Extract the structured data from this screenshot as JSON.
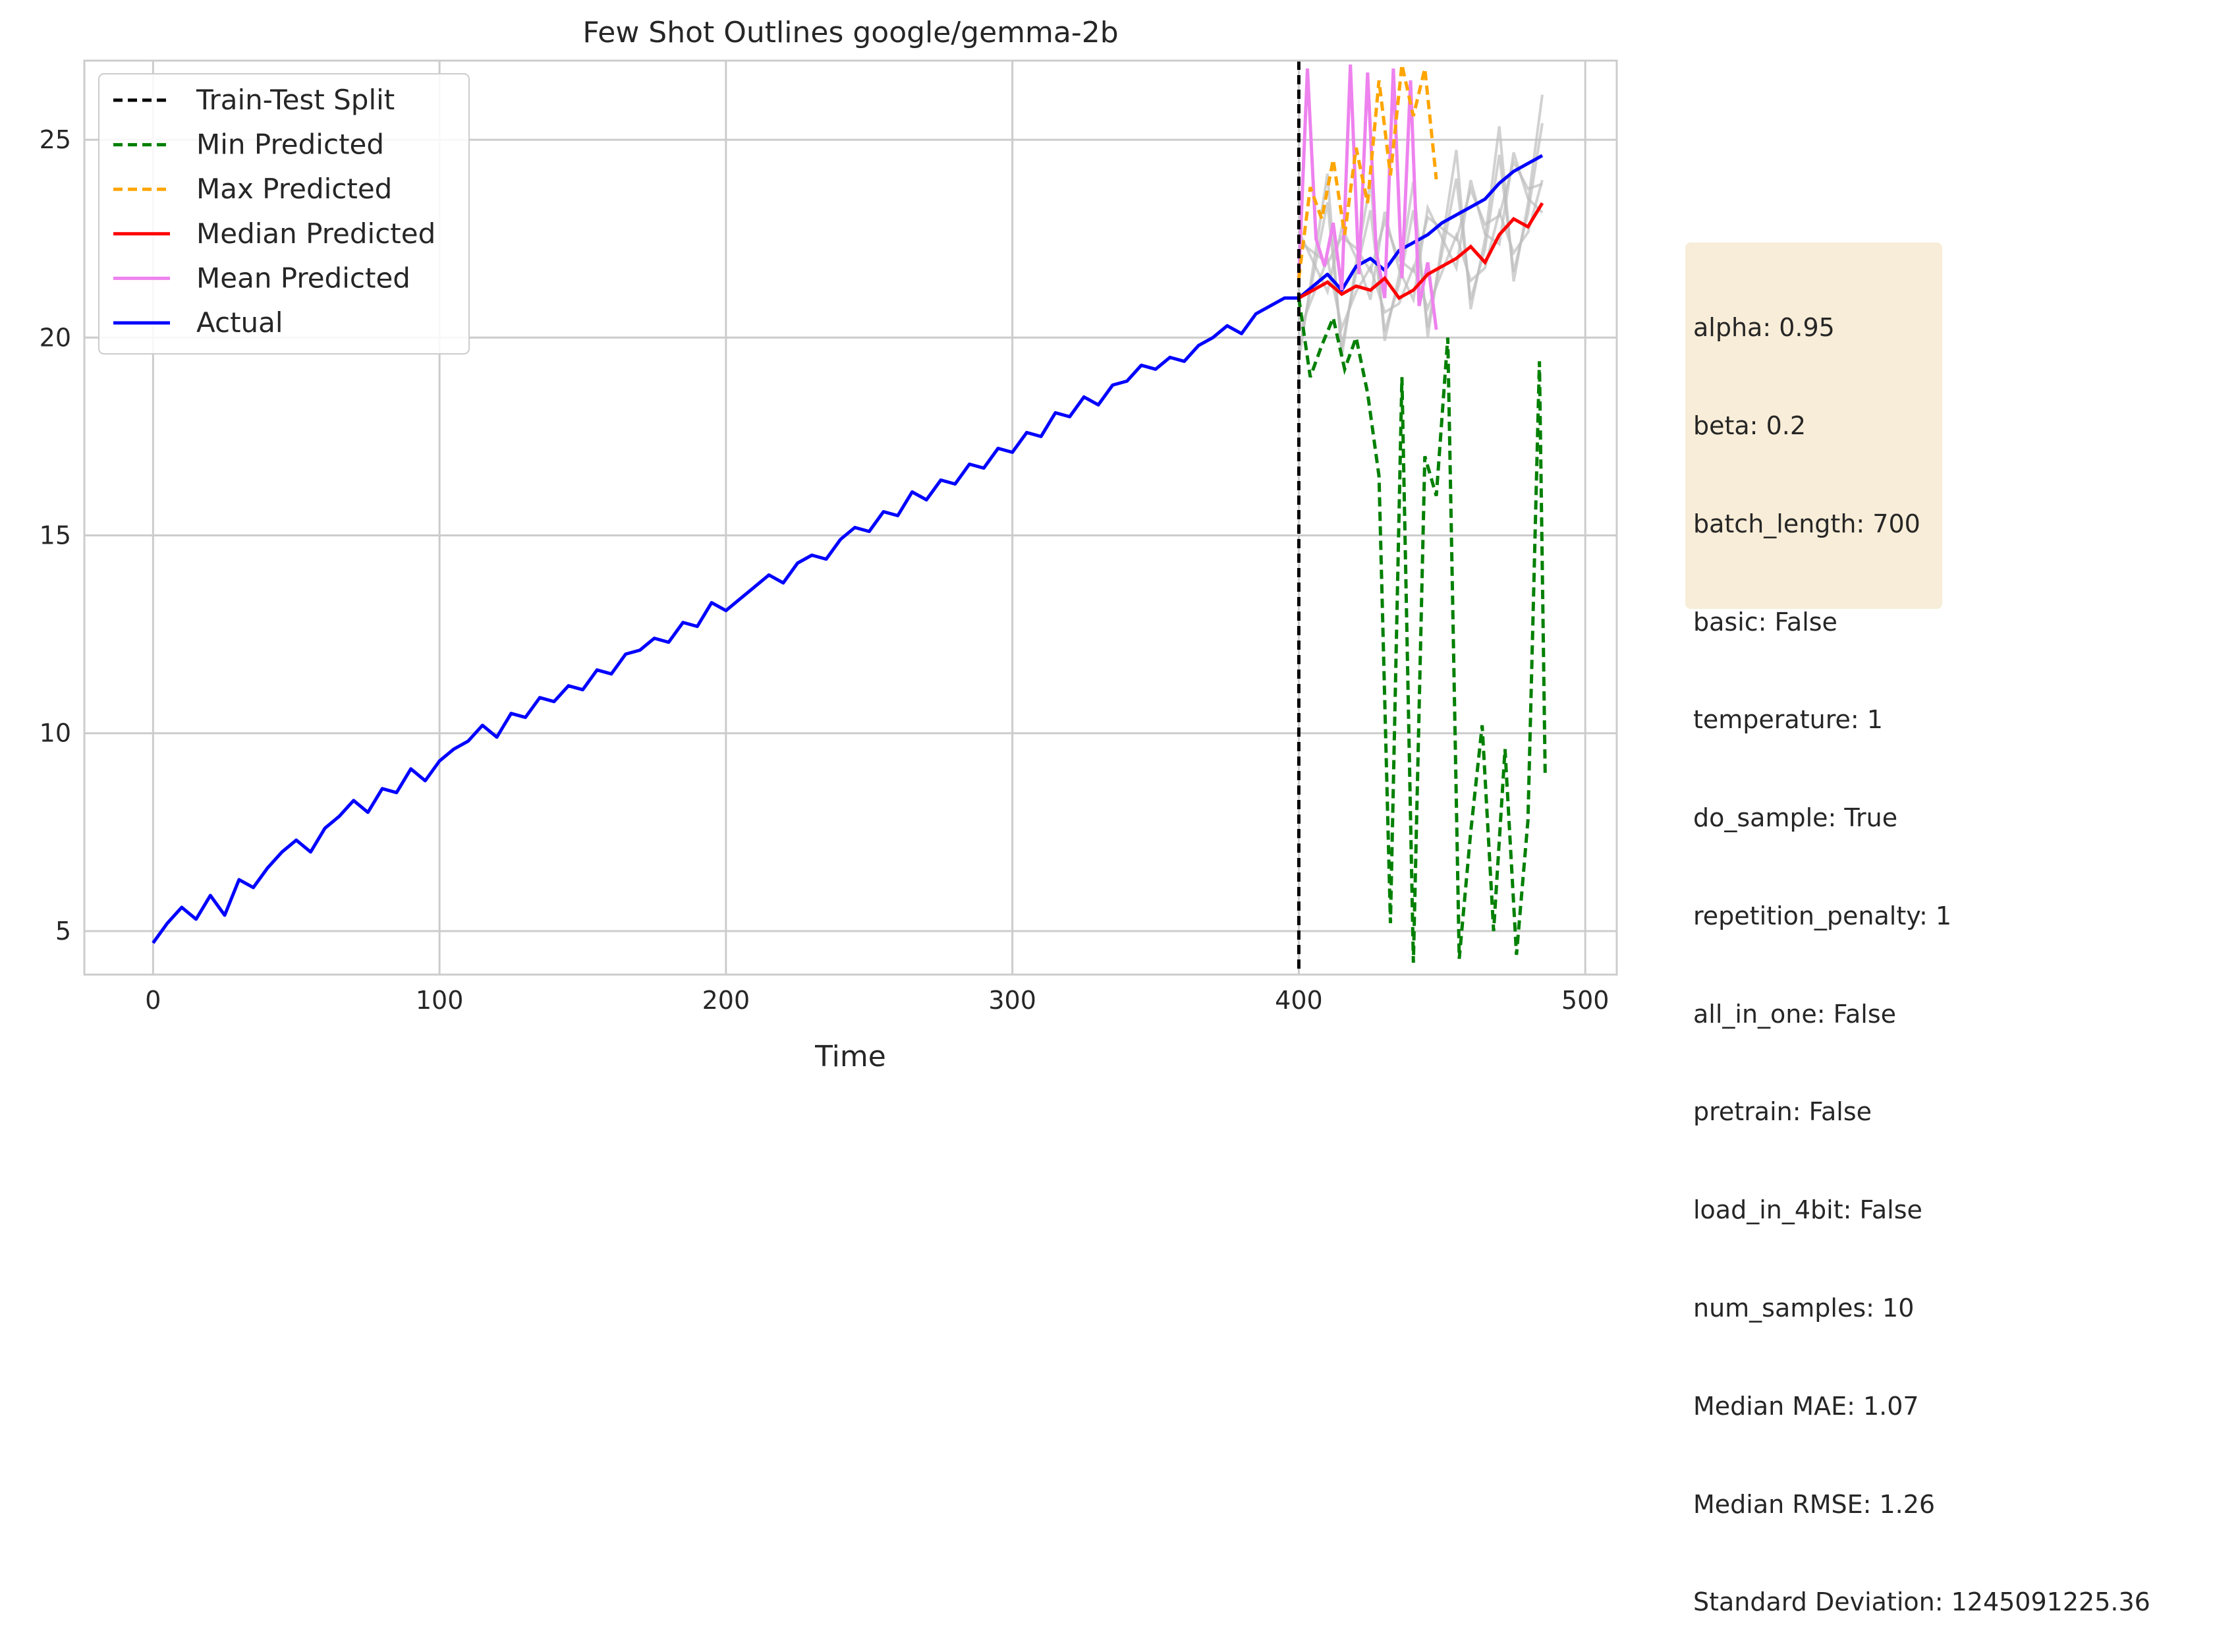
{
  "chart_data": {
    "type": "line",
    "title": "Few Shot Outlines google/gemma-2b",
    "xlabel": "Time",
    "ylabel": "",
    "xlim": [
      -24,
      511
    ],
    "ylim": [
      3.9,
      27
    ],
    "xticks": [
      0,
      100,
      200,
      300,
      400,
      500
    ],
    "yticks": [
      5,
      10,
      15,
      20,
      25
    ],
    "grid": true,
    "legend_position": "top-left",
    "split_x": 400,
    "colors": {
      "actual": "#0000ff",
      "median": "#ff0000",
      "mean": "#ee82ee",
      "min": "#008000",
      "max": "#ffa500",
      "split": "#000000",
      "samples": "#bdbdbd"
    },
    "legend": [
      {
        "label": "Train-Test Split",
        "color": "#000000",
        "dash": true
      },
      {
        "label": "Min Predicted",
        "color": "#008000",
        "dash": true
      },
      {
        "label": "Max Predicted",
        "color": "#ffa500",
        "dash": true
      },
      {
        "label": "Median Predicted",
        "color": "#ff0000",
        "dash": false
      },
      {
        "label": "Mean Predicted",
        "color": "#ee82ee",
        "dash": false
      },
      {
        "label": "Actual",
        "color": "#0000ff",
        "dash": false
      }
    ],
    "actual": {
      "x": [
        0,
        5,
        10,
        15,
        20,
        25,
        30,
        35,
        40,
        45,
        50,
        55,
        60,
        65,
        70,
        75,
        80,
        85,
        90,
        95,
        100,
        105,
        110,
        115,
        120,
        125,
        130,
        135,
        140,
        145,
        150,
        155,
        160,
        165,
        170,
        175,
        180,
        185,
        190,
        195,
        200,
        205,
        210,
        215,
        220,
        225,
        230,
        235,
        240,
        245,
        250,
        255,
        260,
        265,
        270,
        275,
        280,
        285,
        290,
        295,
        300,
        305,
        310,
        315,
        320,
        325,
        330,
        335,
        340,
        345,
        350,
        355,
        360,
        365,
        370,
        375,
        380,
        385,
        390,
        395,
        400,
        405,
        410,
        415,
        420,
        425,
        430,
        435,
        440,
        445,
        450,
        455,
        460,
        465,
        470,
        475,
        480,
        485
      ],
      "y": [
        4.7,
        5.2,
        5.6,
        5.3,
        5.9,
        5.4,
        6.3,
        6.1,
        6.6,
        7.0,
        7.3,
        7.0,
        7.6,
        7.9,
        8.3,
        8.0,
        8.6,
        8.5,
        9.1,
        8.8,
        9.3,
        9.6,
        9.8,
        10.2,
        9.9,
        10.5,
        10.4,
        10.9,
        10.8,
        11.2,
        11.1,
        11.6,
        11.5,
        12.0,
        12.1,
        12.4,
        12.3,
        12.8,
        12.7,
        13.3,
        13.1,
        13.4,
        13.7,
        14.0,
        13.8,
        14.3,
        14.5,
        14.4,
        14.9,
        15.2,
        15.1,
        15.6,
        15.5,
        16.1,
        15.9,
        16.4,
        16.3,
        16.8,
        16.7,
        17.2,
        17.1,
        17.6,
        17.5,
        18.1,
        18.0,
        18.5,
        18.3,
        18.8,
        18.9,
        19.3,
        19.2,
        19.5,
        19.4,
        19.8,
        20.0,
        20.3,
        20.1,
        20.6,
        20.8,
        21.0,
        21.0,
        21.3,
        21.6,
        21.2,
        21.8,
        22.0,
        21.7,
        22.2,
        22.4,
        22.6,
        22.9,
        23.1,
        23.3,
        23.5,
        23.9,
        24.2,
        24.4,
        24.6
      ]
    },
    "median": {
      "x": [
        400,
        405,
        410,
        415,
        420,
        425,
        430,
        435,
        440,
        445,
        450,
        455,
        460,
        465,
        470,
        475,
        480,
        485
      ],
      "y": [
        21.0,
        21.2,
        21.4,
        21.1,
        21.3,
        21.2,
        21.5,
        21.0,
        21.2,
        21.6,
        21.8,
        22.0,
        22.3,
        21.9,
        22.6,
        23.0,
        22.8,
        23.4
      ]
    },
    "mean": {
      "x": [
        400,
        403,
        406,
        409,
        412,
        415,
        418,
        421,
        424,
        427,
        430,
        433,
        436,
        439,
        442,
        445,
        448
      ],
      "y": [
        21.5,
        26.8,
        22.5,
        21.8,
        22.9,
        21.2,
        26.9,
        21.6,
        26.7,
        22.2,
        21.0,
        26.8,
        21.5,
        26.5,
        20.8,
        21.9,
        20.2
      ]
    },
    "max": {
      "x": [
        400,
        404,
        408,
        412,
        416,
        420,
        424,
        428,
        432,
        436,
        440,
        444,
        448
      ],
      "y": [
        21.5,
        23.8,
        23.0,
        24.5,
        22.6,
        24.8,
        23.4,
        26.5,
        24.1,
        26.9,
        25.6,
        26.8,
        24.0
      ]
    },
    "min": {
      "x": [
        400,
        404,
        408,
        412,
        416,
        420,
        424,
        428,
        432,
        436,
        440,
        444,
        448,
        452,
        456,
        460,
        464,
        468,
        472,
        476,
        480,
        484,
        486
      ],
      "y": [
        21.0,
        19.0,
        19.8,
        20.5,
        19.2,
        20.0,
        18.6,
        16.5,
        5.2,
        19.0,
        4.2,
        17.0,
        16.0,
        20.0,
        4.3,
        7.5,
        10.2,
        5.0,
        9.6,
        4.4,
        7.8,
        19.4,
        9.0
      ]
    },
    "annotation_lines": [
      "alpha: 0.95",
      "beta: 0.2",
      "batch_length: 700",
      "basic: False",
      "temperature: 1",
      "do_sample: True",
      "repetition_penalty: 1",
      "all_in_one: False",
      "pretrain: False",
      "load_in_4bit: False",
      "num_samples: 10",
      "Median MAE: 1.07",
      "Median RMSE: 1.26",
      "Standard Deviation: 1245091225.36"
    ]
  }
}
